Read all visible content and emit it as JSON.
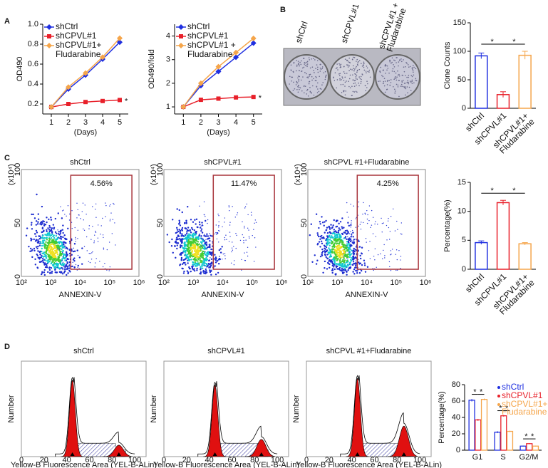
{
  "panel_labels": [
    "A",
    "B",
    "C",
    "D"
  ],
  "chart_data": [
    {
      "type": "line",
      "ylabel": "OD490",
      "xlabel": "(Days)",
      "x": [
        1,
        2,
        3,
        4,
        5
      ],
      "xlim": [
        0.5,
        5.5
      ],
      "xticks": [
        1,
        2,
        3,
        4,
        5
      ],
      "ylim": [
        0.1,
        1.0
      ],
      "yticks": [
        0.2,
        0.4,
        0.6,
        0.8,
        {
          "value": 1.0,
          "label": "1.0"
        }
      ],
      "series": [
        {
          "name": "shCtrl",
          "color": "#1f2fe0",
          "values": [
            0.17,
            0.35,
            0.49,
            0.65,
            0.82
          ]
        },
        {
          "name": "shCPVL#1",
          "color": "#e8202a",
          "values": [
            0.17,
            0.2,
            0.22,
            0.23,
            0.24
          ]
        },
        {
          "name": "shCPVL#1+\nFludarabine",
          "color": "#f5a54a",
          "values": [
            0.17,
            0.37,
            0.51,
            0.67,
            0.86
          ]
        }
      ],
      "annotations": [
        "*"
      ]
    },
    {
      "type": "line",
      "ylabel": "OD490/fold",
      "xlabel": "(Days)",
      "x": [
        1,
        2,
        3,
        4,
        5
      ],
      "xlim": [
        0.5,
        5.5
      ],
      "xticks": [
        1,
        2,
        3,
        4,
        5
      ],
      "ylim": [
        0.7,
        4.5
      ],
      "yticks": [
        1,
        2,
        3,
        4
      ],
      "series": [
        {
          "name": "shCtrl",
          "color": "#1f2fe0",
          "values": [
            1,
            1.9,
            2.5,
            3.1,
            3.7
          ]
        },
        {
          "name": "shCPVL#1",
          "color": "#e8202a",
          "values": [
            1,
            1.3,
            1.35,
            1.4,
            1.42
          ]
        },
        {
          "name": "shCPVL#1 +\nFludarabine",
          "color": "#f5a54a",
          "values": [
            1,
            2.0,
            2.7,
            3.3,
            3.9
          ]
        }
      ],
      "annotations": [
        "*"
      ]
    },
    {
      "type": "bar",
      "ylabel": "Clone Counts",
      "categories": [
        "shCtrl",
        "shCPVL#1",
        "shCPVL#1+\nFludarabine"
      ],
      "values": [
        92,
        24,
        93
      ],
      "errors": [
        5,
        5,
        7
      ],
      "colors": [
        "#1f2fe0",
        "#e8202a",
        "#f5a54a"
      ],
      "ylim": [
        0,
        150
      ],
      "yticks": [
        0,
        50,
        100,
        150
      ],
      "annotations": [
        "*",
        "*"
      ]
    },
    {
      "type": "bar",
      "ylabel": "Percentage(%)",
      "categories": [
        "shCtrl",
        "shCPVL#1",
        "shCPVL#1+\nFludarabine"
      ],
      "values": [
        4.6,
        11.5,
        4.4
      ],
      "errors": [
        0.3,
        0.4,
        0.2
      ],
      "colors": [
        "#1f2fe0",
        "#e8202a",
        "#f5a54a"
      ],
      "ylim": [
        0,
        15
      ],
      "yticks": [
        0,
        5,
        10,
        15
      ],
      "annotations": [
        "*",
        "*"
      ]
    },
    {
      "type": "grouped_bar",
      "ylabel": "Percentage(%)",
      "categories": [
        "G1",
        "S",
        "G2/M"
      ],
      "series": [
        {
          "name": "shCtrl",
          "color": "#1f2fe0",
          "values": [
            61,
            22,
            5
          ],
          "errors": [
            1.5,
            1.2,
            0.6
          ]
        },
        {
          "name": "shCPVL#1",
          "color": "#e8202a",
          "values": [
            37,
            42,
            8
          ],
          "errors": [
            1.2,
            1.0,
            0.6
          ]
        },
        {
          "name": "shCPVL#1+\nFludarabine",
          "color": "#f5a54a",
          "values": [
            62,
            23,
            5
          ],
          "errors": [
            1.0,
            0.8,
            0.5
          ]
        }
      ],
      "ylim": [
        0,
        80
      ],
      "yticks": [
        0,
        20,
        40,
        60,
        80
      ],
      "annotations": [
        "*",
        "*",
        "*",
        "*",
        "*",
        "*"
      ]
    }
  ],
  "colony": {
    "labels": [
      "shCtrl",
      "shCPVL#1",
      "shCPVL#1 +\nFludarabine"
    ]
  },
  "flow": {
    "titles": [
      "shCtrl",
      "shCPVL#1",
      "shCPVL #1+Fludarabine"
    ],
    "percents": [
      "4.56%",
      "11.47%",
      "4.25%"
    ],
    "xlabel": "ANNEXIN-V",
    "yscale": "(x10⁴)",
    "yticks": [
      "0",
      "50",
      "100"
    ],
    "xticks": [
      "10²",
      "10³",
      "10⁴",
      "10⁵",
      "10⁶"
    ]
  },
  "histogram": {
    "titles": [
      "shCtrl",
      "shCPVL#1",
      "shCPVL #1+Fludarabine"
    ],
    "ylabel": "Number",
    "xlabel": "Yellow-B Fluorescence Area (YEL-B-ALin)",
    "xticks": [
      "0",
      "20",
      "40",
      "60",
      "80",
      "100"
    ]
  }
}
